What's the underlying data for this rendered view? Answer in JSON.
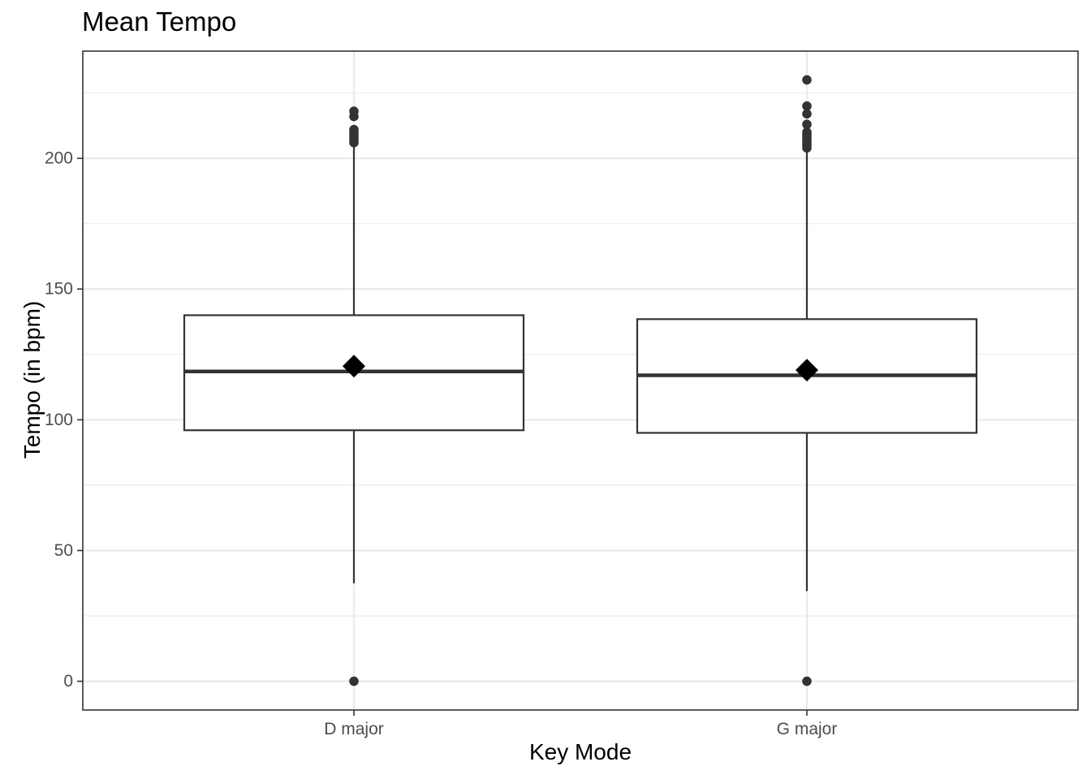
{
  "chart_data": {
    "type": "boxplot",
    "title": "Mean Tempo",
    "xlabel": "Key Mode",
    "ylabel": "Tempo (in bpm)",
    "ylim": [
      -11,
      241
    ],
    "yticks": [
      0,
      50,
      100,
      150,
      200
    ],
    "grid": true,
    "categories": [
      "D major",
      "G major"
    ],
    "boxes": [
      {
        "category": "D major",
        "whisker_low": 37.5,
        "q1": 96,
        "median": 118.5,
        "q3": 140,
        "whisker_high": 205.5,
        "mean": 120.5,
        "outliers": [
          0,
          206,
          207,
          208,
          209,
          210,
          211,
          216,
          218
        ]
      },
      {
        "category": "G major",
        "whisker_low": 34.5,
        "q1": 95,
        "median": 117,
        "q3": 138.5,
        "whisker_high": 203.5,
        "mean": 119,
        "outliers": [
          0,
          204,
          205,
          206,
          207,
          208,
          209,
          210,
          213,
          217,
          220,
          230
        ]
      }
    ],
    "colors": {
      "box_stroke": "#333333",
      "point": "#333333",
      "mean_marker": "#000000",
      "grid": "#ebebeb",
      "panel_border": "#333333"
    }
  }
}
